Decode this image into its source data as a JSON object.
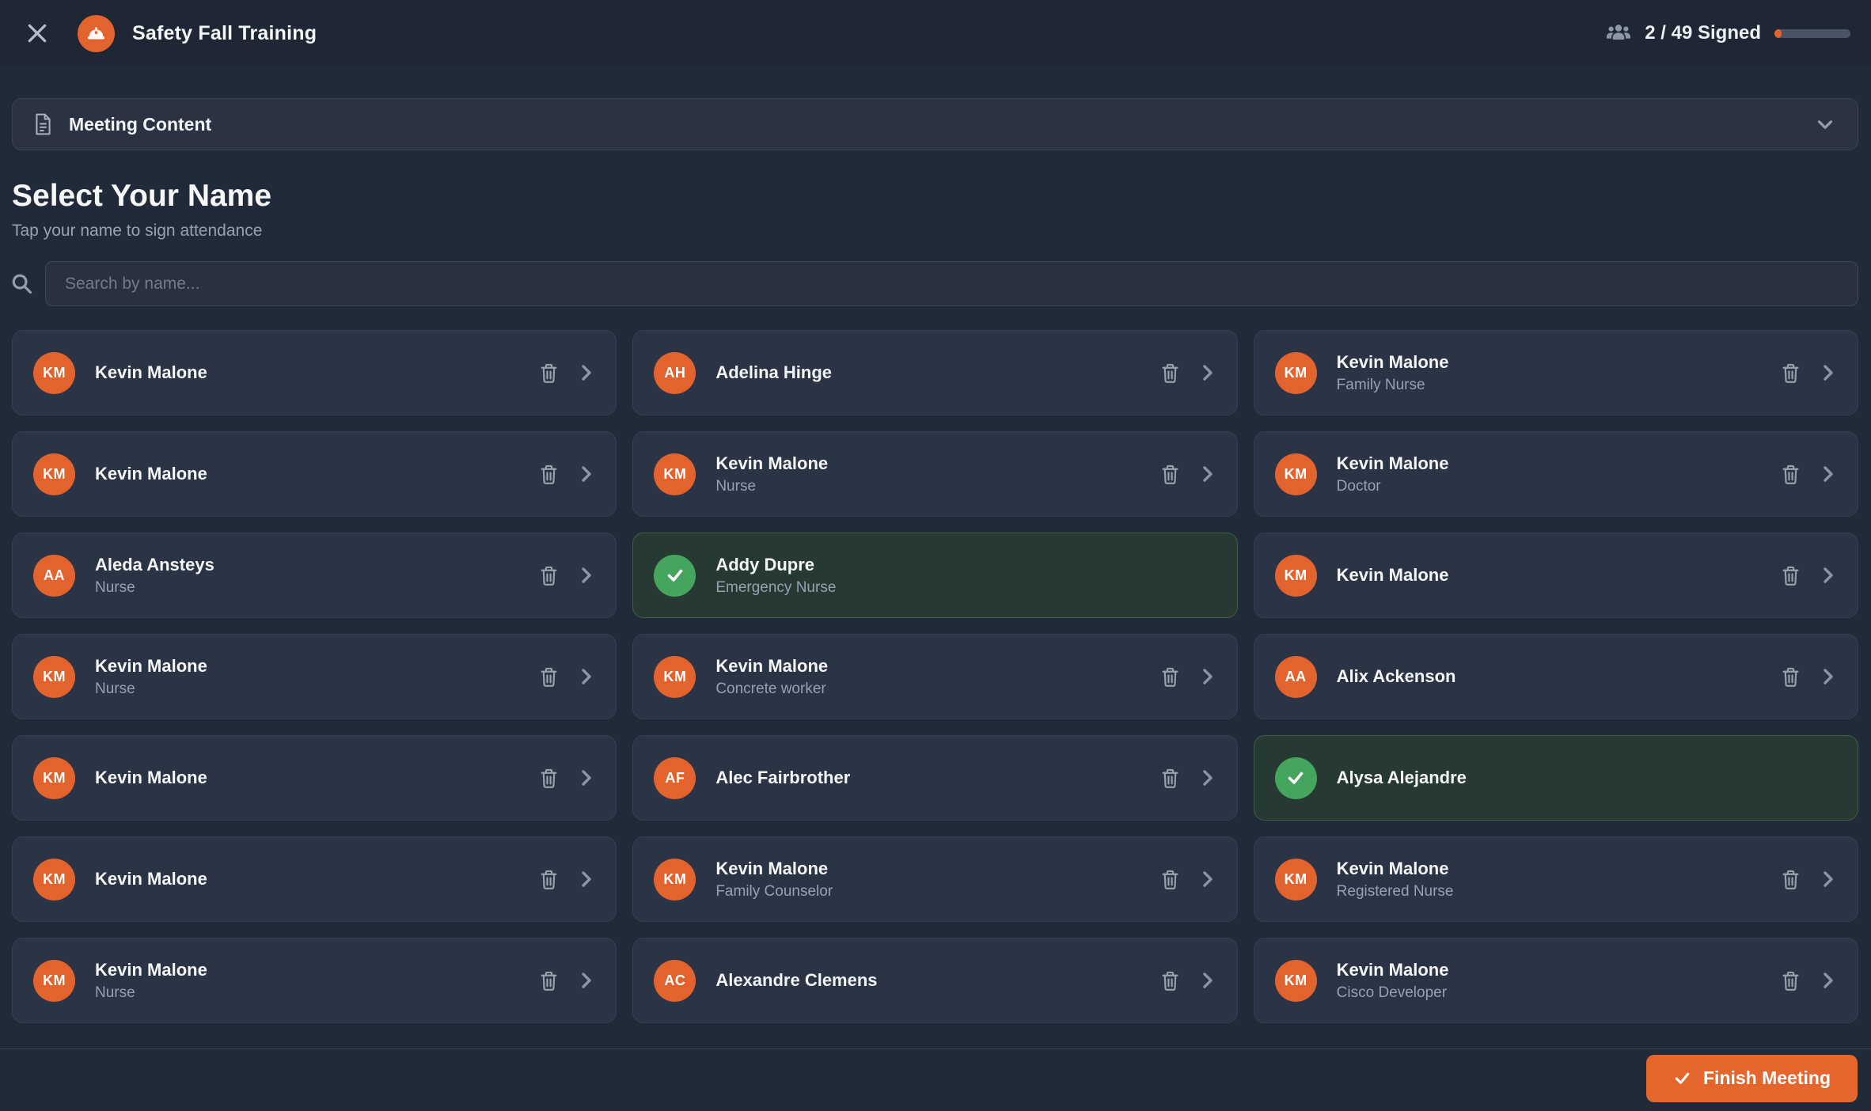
{
  "colors": {
    "accent_orange": "#e2632d",
    "button_orange": "#e5662c",
    "signed_green": "#46a55d",
    "page_bg": "#212a38",
    "card_bg": "#2b3444",
    "signed_card_bg": "#263a33"
  },
  "header": {
    "title": "Safety Fall Training",
    "signed_count": 2,
    "total_count": 49,
    "signed_label": "2 / 49 Signed"
  },
  "meeting_content": {
    "label": "Meeting Content"
  },
  "attendance": {
    "heading": "Select Your Name",
    "subheading": "Tap your name to sign attendance",
    "search_placeholder": "Search by name...",
    "search_value": "",
    "attendees": [
      {
        "name": "Kevin Malone",
        "initials": "KM",
        "role": "",
        "signed": false
      },
      {
        "name": "Adelina Hinge",
        "initials": "AH",
        "role": "",
        "signed": false
      },
      {
        "name": "Kevin Malone",
        "initials": "KM",
        "role": "Family Nurse",
        "signed": false
      },
      {
        "name": "Kevin Malone",
        "initials": "KM",
        "role": "",
        "signed": false
      },
      {
        "name": "Kevin Malone",
        "initials": "KM",
        "role": "Nurse",
        "signed": false
      },
      {
        "name": "Kevin Malone",
        "initials": "KM",
        "role": "Doctor",
        "signed": false
      },
      {
        "name": "Aleda Ansteys",
        "initials": "AA",
        "role": "Nurse",
        "signed": false
      },
      {
        "name": "Addy Dupre",
        "initials": "",
        "role": "Emergency Nurse",
        "signed": true
      },
      {
        "name": "Kevin Malone",
        "initials": "KM",
        "role": "",
        "signed": false
      },
      {
        "name": "Kevin Malone",
        "initials": "KM",
        "role": "Nurse",
        "signed": false
      },
      {
        "name": "Kevin Malone",
        "initials": "KM",
        "role": "Concrete worker",
        "signed": false
      },
      {
        "name": "Alix Ackenson",
        "initials": "AA",
        "role": "",
        "signed": false
      },
      {
        "name": "Kevin Malone",
        "initials": "KM",
        "role": "",
        "signed": false
      },
      {
        "name": "Alec Fairbrother",
        "initials": "AF",
        "role": "",
        "signed": false
      },
      {
        "name": "Alysa Alejandre",
        "initials": "",
        "role": "",
        "signed": true
      },
      {
        "name": "Kevin Malone",
        "initials": "KM",
        "role": "",
        "signed": false
      },
      {
        "name": "Kevin Malone",
        "initials": "KM",
        "role": "Family Counselor",
        "signed": false
      },
      {
        "name": "Kevin Malone",
        "initials": "KM",
        "role": "Registered Nurse",
        "signed": false
      },
      {
        "name": "Kevin Malone",
        "initials": "KM",
        "role": "Nurse",
        "signed": false
      },
      {
        "name": "Alexandre Clemens",
        "initials": "AC",
        "role": "",
        "signed": false
      },
      {
        "name": "Kevin Malone",
        "initials": "KM",
        "role": "Cisco Developer",
        "signed": false
      }
    ]
  },
  "footer": {
    "finish_label": "Finish Meeting"
  },
  "icons": [
    "close-icon",
    "hardhat-icon",
    "people-icon",
    "document-icon",
    "chevron-down-icon",
    "search-icon",
    "trash-icon",
    "chevron-right-icon",
    "check-icon"
  ]
}
